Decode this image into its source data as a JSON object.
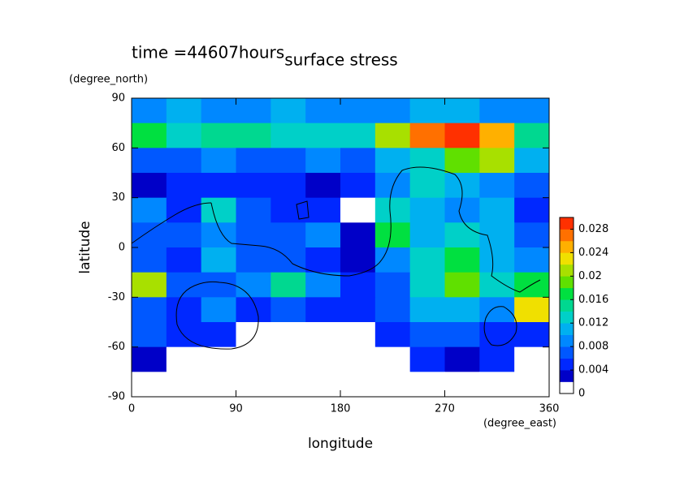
{
  "chart_data": {
    "type": "contour",
    "title": "surface stress",
    "subtitle": "time =44607hours",
    "x_label": "longitude",
    "y_label": "latitude",
    "x_unit": "(degree_east)",
    "y_unit": "(degree_north)",
    "x": [
      15,
      45,
      75,
      105,
      135,
      165,
      195,
      225,
      255,
      285,
      315,
      345
    ],
    "y": [
      82.5,
      67.5,
      52.5,
      37.5,
      22.5,
      7.5,
      -7.5,
      -22.5,
      -37.5,
      -52.5,
      -67.5,
      -82.5
    ],
    "z": [
      [
        0.008,
        0.01,
        0.008,
        0.008,
        0.01,
        0.008,
        0.008,
        0.008,
        0.01,
        0.01,
        0.008,
        0.008
      ],
      [
        0.016,
        0.012,
        0.014,
        0.014,
        0.012,
        0.012,
        0.012,
        0.02,
        0.026,
        0.03,
        0.024,
        0.014
      ],
      [
        0.006,
        0.006,
        0.008,
        0.006,
        0.006,
        0.008,
        0.006,
        0.01,
        0.012,
        0.018,
        0.02,
        0.01
      ],
      [
        0.002,
        0.004,
        0.004,
        0.004,
        0.004,
        0.002,
        0.004,
        0.008,
        0.012,
        0.01,
        0.008,
        0.006
      ],
      [
        0.008,
        0.004,
        0.012,
        0.006,
        0.004,
        0.004,
        0,
        0.012,
        0.01,
        0.008,
        0.01,
        0.004
      ],
      [
        0.006,
        0.006,
        0.008,
        0.006,
        0.006,
        0.008,
        0.002,
        0.016,
        0.01,
        0.012,
        0.01,
        0.006
      ],
      [
        0.006,
        0.004,
        0.01,
        0.006,
        0.006,
        0.004,
        0.002,
        0.008,
        0.012,
        0.016,
        0.01,
        0.008
      ],
      [
        0.02,
        0.006,
        0.006,
        0.008,
        0.014,
        0.008,
        0.004,
        0.006,
        0.012,
        0.018,
        0.012,
        0.016
      ],
      [
        0.006,
        0.004,
        0.008,
        0.004,
        0.006,
        0.004,
        0.004,
        0.006,
        0.01,
        0.01,
        0.008,
        0.022
      ],
      [
        0.006,
        0.004,
        0.004,
        0,
        0,
        0,
        0,
        0.004,
        0.006,
        0.006,
        0.004,
        0.004
      ],
      [
        0.002,
        0,
        0,
        0,
        0,
        0,
        0,
        0,
        0.004,
        0.002,
        0.004,
        0
      ],
      [
        0,
        0,
        0,
        0,
        0,
        0,
        0,
        0,
        0,
        0,
        0,
        0
      ]
    ],
    "xlim": [
      0,
      360
    ],
    "ylim": [
      -90,
      90
    ],
    "xticks": [
      0,
      90,
      180,
      270,
      360
    ],
    "yticks": [
      -90,
      -60,
      -30,
      0,
      30,
      60,
      90
    ],
    "clim": [
      0,
      0.03
    ],
    "cticks": [
      0,
      0.004,
      0.008,
      0.012,
      0.016,
      0.02,
      0.024,
      0.028
    ],
    "colors": [
      "#ffffff",
      "#0000c8",
      "#0028ff",
      "#0058ff",
      "#0088ff",
      "#00b0f0",
      "#00d0c8",
      "#00d890",
      "#00e040",
      "#60e000",
      "#a8e000",
      "#f0e000",
      "#ffb000",
      "#ff7000",
      "#ff3000"
    ]
  }
}
